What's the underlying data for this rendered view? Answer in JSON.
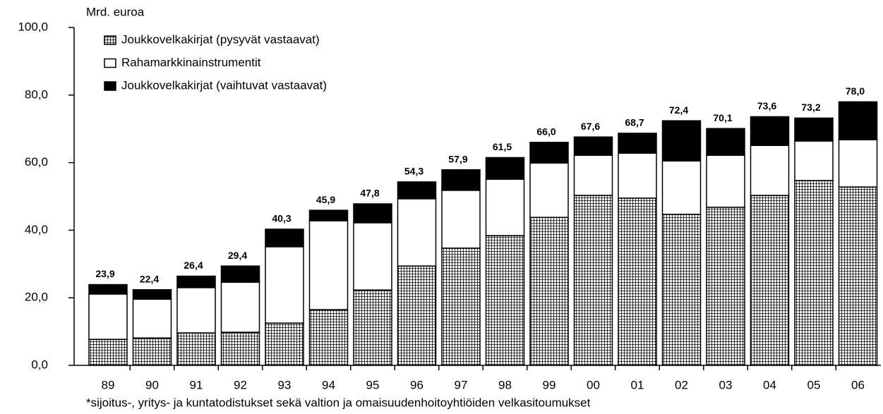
{
  "chart_data": {
    "type": "stacked_bar",
    "y_axis_label": "Mrd. euroa",
    "footnote": "*sijoitus-, yritys- ja kuntatodistukset sekä valtion ja omaisuudenhoitoyhtiöiden velkasitoumukset",
    "categories": [
      "89",
      "90",
      "91",
      "92",
      "93",
      "94",
      "95",
      "96",
      "97",
      "98",
      "99",
      "00",
      "01",
      "02",
      "03",
      "04",
      "05",
      "06"
    ],
    "series": [
      {
        "name": "Joukkovelkakirjat (pysyvät vastaavat)",
        "color": "#000000",
        "pattern": "grid",
        "values": [
          7.7,
          8.1,
          9.6,
          9.8,
          12.5,
          16.5,
          22.3,
          29.4,
          34.7,
          38.4,
          43.8,
          50.3,
          49.5,
          44.7,
          46.8,
          50.3,
          54.7,
          52.8
        ]
      },
      {
        "name": "Rahamarkkinainstrumentit",
        "color": "#ffffff",
        "values": [
          13.4,
          11.5,
          13.4,
          14.8,
          22.6,
          26.3,
          19.9,
          19.9,
          17.1,
          16.7,
          16.1,
          11.9,
          13.3,
          15.8,
          15.4,
          14.8,
          11.7,
          14.0
        ]
      },
      {
        "name": "Joukkovelkakirjat (vaihtuvat vastaavat)",
        "color": "#000000",
        "values": [
          2.8,
          2.8,
          3.4,
          4.8,
          5.2,
          3.1,
          5.6,
          5.0,
          6.1,
          6.4,
          6.1,
          5.4,
          5.9,
          11.9,
          7.9,
          8.5,
          6.8,
          11.2
        ]
      }
    ],
    "totals": [
      23.9,
      22.4,
      26.4,
      29.4,
      40.3,
      45.9,
      47.8,
      54.3,
      57.9,
      61.5,
      66.0,
      67.6,
      68.7,
      72.4,
      70.1,
      73.6,
      73.2,
      78.0
    ],
    "total_labels": [
      "23,9",
      "22,4",
      "26,4",
      "29,4",
      "40,3",
      "45,9",
      "47,8",
      "54,3",
      "57,9",
      "61,5",
      "66,0",
      "67,6",
      "68,7",
      "72,4",
      "70,1",
      "73,6",
      "73,2",
      "78,0"
    ],
    "ylim": [
      0,
      100
    ],
    "yticks": [
      {
        "value": 0,
        "label": "0,0"
      },
      {
        "value": 20,
        "label": "20,0"
      },
      {
        "value": 40,
        "label": "40,0"
      },
      {
        "value": 60,
        "label": "60,0"
      },
      {
        "value": 80,
        "label": "80,0"
      },
      {
        "value": 100,
        "label": "100,0"
      }
    ],
    "grid": false
  }
}
